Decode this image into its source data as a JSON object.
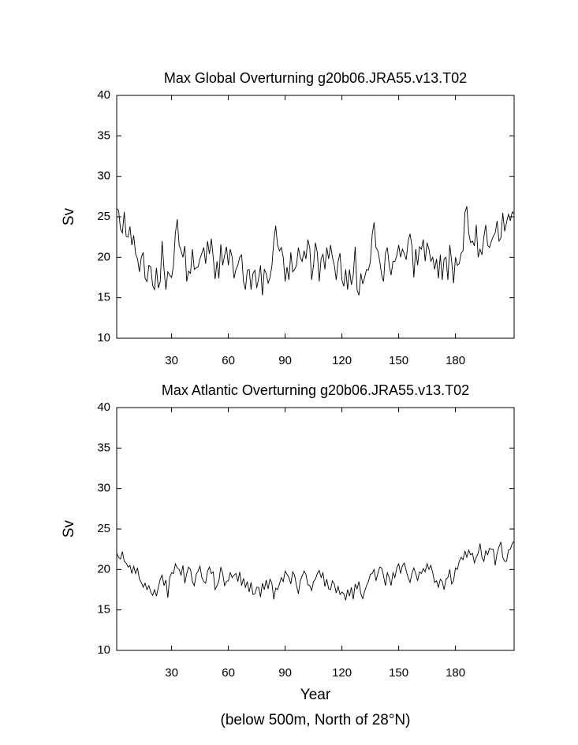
{
  "chart_data": [
    {
      "type": "line",
      "title": "Max Global Overturning g20b06.JRA55.v13.T02",
      "ylabel": "Sv",
      "color": "#000000",
      "xlim": [
        1,
        211
      ],
      "ylim": [
        10,
        40
      ],
      "xticks": [
        30,
        60,
        90,
        120,
        150,
        180
      ],
      "yticks": [
        10,
        15,
        20,
        25,
        30,
        35,
        40
      ],
      "x": [
        1,
        2,
        3,
        4,
        5,
        6,
        7,
        8,
        9,
        10,
        11,
        12,
        13,
        14,
        15,
        16,
        17,
        18,
        19,
        20,
        21,
        22,
        23,
        24,
        25,
        26,
        27,
        28,
        29,
        30,
        31,
        32,
        33,
        34,
        35,
        36,
        37,
        38,
        39,
        40,
        41,
        42,
        43,
        44,
        45,
        46,
        47,
        48,
        49,
        50,
        51,
        52,
        53,
        54,
        55,
        56,
        57,
        58,
        59,
        60,
        61,
        62,
        63,
        64,
        65,
        66,
        67,
        68,
        69,
        70,
        71,
        72,
        73,
        74,
        75,
        76,
        77,
        78,
        79,
        80,
        81,
        82,
        83,
        84,
        85,
        86,
        87,
        88,
        89,
        90,
        91,
        92,
        93,
        94,
        95,
        96,
        97,
        98,
        99,
        100,
        101,
        102,
        103,
        104,
        105,
        106,
        107,
        108,
        109,
        110,
        111,
        112,
        113,
        114,
        115,
        116,
        117,
        118,
        119,
        120,
        121,
        122,
        123,
        124,
        125,
        126,
        127,
        128,
        129,
        130,
        131,
        132,
        133,
        134,
        135,
        136,
        137,
        138,
        139,
        140,
        141,
        142,
        143,
        144,
        145,
        146,
        147,
        148,
        149,
        150,
        151,
        152,
        153,
        154,
        155,
        156,
        157,
        158,
        159,
        160,
        161,
        162,
        163,
        164,
        165,
        166,
        167,
        168,
        169,
        170,
        171,
        172,
        173,
        174,
        175,
        176,
        177,
        178,
        179,
        180,
        181,
        182,
        183,
        184,
        185,
        186,
        187,
        188,
        189,
        190,
        191,
        192,
        193,
        194,
        195,
        196,
        197,
        198,
        199,
        200,
        201,
        202,
        203,
        204,
        205,
        206,
        207,
        208,
        209,
        210,
        211
      ],
      "values": [
        26.0,
        25.8,
        23.5,
        23.0,
        25.6,
        22.6,
        22.5,
        23.8,
        21.5,
        22.7,
        20.4,
        19.8,
        18.2,
        20.0,
        20.6,
        17.4,
        17.0,
        19.0,
        18.8,
        16.5,
        16.0,
        18.7,
        16.2,
        17.0,
        22.0,
        18.5,
        16.0,
        18.2,
        17.8,
        17.5,
        19.0,
        23.0,
        24.7,
        21.5,
        20.8,
        20.0,
        21.4,
        17.0,
        18.3,
        18.0,
        21.0,
        18.5,
        18.7,
        18.8,
        19.8,
        20.5,
        21.2,
        19.2,
        22.0,
        20.4,
        22.3,
        20.0,
        17.3,
        19.5,
        17.4,
        21.6,
        19.0,
        20.2,
        21.3,
        19.0,
        21.0,
        20.0,
        17.4,
        18.5,
        19.0,
        20.0,
        20.3,
        17.0,
        16.0,
        18.4,
        18.5,
        16.0,
        18.0,
        18.4,
        16.2,
        17.4,
        19.0,
        15.3,
        18.5,
        18.0,
        16.8,
        17.5,
        18.9,
        22.0,
        23.9,
        21.5,
        20.8,
        21.2,
        20.0,
        17.0,
        18.8,
        17.2,
        20.6,
        18.2,
        18.5,
        19.0,
        21.2,
        20.0,
        19.5,
        20.8,
        19.8,
        22.2,
        21.2,
        17.2,
        19.0,
        21.8,
        20.6,
        17.0,
        19.8,
        20.4,
        18.5,
        21.2,
        19.8,
        21.5,
        20.0,
        19.0,
        17.2,
        19.5,
        20.5,
        17.2,
        16.4,
        18.5,
        16.0,
        18.5,
        16.6,
        17.8,
        21.3,
        16.0,
        15.3,
        18.0,
        16.7,
        17.5,
        18.5,
        18.4,
        19.4,
        22.8,
        24.3,
        21.2,
        20.8,
        19.5,
        17.8,
        17.0,
        20.5,
        21.2,
        19.0,
        17.8,
        19.5,
        19.5,
        20.2,
        21.5,
        20.0,
        21.0,
        20.4,
        19.7,
        22.0,
        22.9,
        21.4,
        17.5,
        21.0,
        19.0,
        21.3,
        21.0,
        22.2,
        19.5,
        21.8,
        21.0,
        19.5,
        20.0,
        18.5,
        19.8,
        17.4,
        20.3,
        17.2,
        19.8,
        20.0,
        17.2,
        21.5,
        19.5,
        16.8,
        20.0,
        19.0,
        19.2,
        20.5,
        20.8,
        25.5,
        26.3,
        23.0,
        21.8,
        22.0,
        21.4,
        24.0,
        20.0,
        21.0,
        20.3,
        22.5,
        24.0,
        21.5,
        21.2,
        22.0,
        22.6,
        23.0,
        24.5,
        22.0,
        22.4,
        25.5,
        23.2,
        24.3,
        25.3,
        24.5,
        25.6,
        25.4
      ]
    },
    {
      "type": "line",
      "title": "Max Atlantic Overturning g20b06.JRA55.v13.T02",
      "ylabel": "Sv",
      "xlabel": "Year",
      "caption": "(below 500m, North of 28°N)",
      "color": "#000000",
      "xlim": [
        1,
        211
      ],
      "ylim": [
        10,
        40
      ],
      "xticks": [
        30,
        60,
        90,
        120,
        150,
        180
      ],
      "yticks": [
        10,
        15,
        20,
        25,
        30,
        35,
        40
      ],
      "x": [
        1,
        2,
        3,
        4,
        5,
        6,
        7,
        8,
        9,
        10,
        11,
        12,
        13,
        14,
        15,
        16,
        17,
        18,
        19,
        20,
        21,
        22,
        23,
        24,
        25,
        26,
        27,
        28,
        29,
        30,
        31,
        32,
        33,
        34,
        35,
        36,
        37,
        38,
        39,
        40,
        41,
        42,
        43,
        44,
        45,
        46,
        47,
        48,
        49,
        50,
        51,
        52,
        53,
        54,
        55,
        56,
        57,
        58,
        59,
        60,
        61,
        62,
        63,
        64,
        65,
        66,
        67,
        68,
        69,
        70,
        71,
        72,
        73,
        74,
        75,
        76,
        77,
        78,
        79,
        80,
        81,
        82,
        83,
        84,
        85,
        86,
        87,
        88,
        89,
        90,
        91,
        92,
        93,
        94,
        95,
        96,
        97,
        98,
        99,
        100,
        101,
        102,
        103,
        104,
        105,
        106,
        107,
        108,
        109,
        110,
        111,
        112,
        113,
        114,
        115,
        116,
        117,
        118,
        119,
        120,
        121,
        122,
        123,
        124,
        125,
        126,
        127,
        128,
        129,
        130,
        131,
        132,
        133,
        134,
        135,
        136,
        137,
        138,
        139,
        140,
        141,
        142,
        143,
        144,
        145,
        146,
        147,
        148,
        149,
        150,
        151,
        152,
        153,
        154,
        155,
        156,
        157,
        158,
        159,
        160,
        161,
        162,
        163,
        164,
        165,
        166,
        167,
        168,
        169,
        170,
        171,
        172,
        173,
        174,
        175,
        176,
        177,
        178,
        179,
        180,
        181,
        182,
        183,
        184,
        185,
        186,
        187,
        188,
        189,
        190,
        191,
        192,
        193,
        194,
        195,
        196,
        197,
        198,
        199,
        200,
        201,
        202,
        203,
        204,
        205,
        206,
        207,
        208,
        209,
        210,
        211
      ],
      "values": [
        22.0,
        21.5,
        21.3,
        22.2,
        21.0,
        20.8,
        20.3,
        20.5,
        19.5,
        20.4,
        19.5,
        20.2,
        18.8,
        18.4,
        17.8,
        18.3,
        17.5,
        18.0,
        17.2,
        16.8,
        17.5,
        16.7,
        17.8,
        18.8,
        19.3,
        18.0,
        18.7,
        16.5,
        19.0,
        19.6,
        19.5,
        20.7,
        20.2,
        20.0,
        19.3,
        20.5,
        18.3,
        19.5,
        20.3,
        20.0,
        18.5,
        18.0,
        19.4,
        19.8,
        20.4,
        19.0,
        18.5,
        18.3,
        19.8,
        20.3,
        19.5,
        19.7,
        17.5,
        18.0,
        18.6,
        20.3,
        19.5,
        18.0,
        18.5,
        18.6,
        19.6,
        19.0,
        19.3,
        19.5,
        18.5,
        19.7,
        18.0,
        18.9,
        17.8,
        18.5,
        17.2,
        18.4,
        16.9,
        17.0,
        17.8,
        17.8,
        16.6,
        18.3,
        17.5,
        18.7,
        17.6,
        18.8,
        18.3,
        16.3,
        17.7,
        17.5,
        18.2,
        19.0,
        18.5,
        19.8,
        19.4,
        19.0,
        18.2,
        19.7,
        19.3,
        18.0,
        17.0,
        18.6,
        19.2,
        19.8,
        19.4,
        18.1,
        18.0,
        17.4,
        18.5,
        18.8,
        19.5,
        19.9,
        19.0,
        19.6,
        17.9,
        18.8,
        17.6,
        17.5,
        18.6,
        18.2,
        17.1,
        17.9,
        16.9,
        17.2,
        17.0,
        16.2,
        17.5,
        16.7,
        17.8,
        16.3,
        18.2,
        17.6,
        18.5,
        17.0,
        16.4,
        17.3,
        18.0,
        18.5,
        19.4,
        19.5,
        20.0,
        18.6,
        19.5,
        20.3,
        20.2,
        19.2,
        18.0,
        19.6,
        19.0,
        18.0,
        19.6,
        19.0,
        20.2,
        20.7,
        19.5,
        20.5,
        20.8,
        19.8,
        19.0,
        18.4,
        19.5,
        20.2,
        19.5,
        18.6,
        19.7,
        19.5,
        20.1,
        19.7,
        20.7,
        20.0,
        20.5,
        19.6,
        18.4,
        18.6,
        17.8,
        18.8,
        18.5,
        17.5,
        18.8,
        19.0,
        20.0,
        18.2,
        18.6,
        20.2,
        20.0,
        21.0,
        21.5,
        21.2,
        22.3,
        21.5,
        22.4,
        21.8,
        22.0,
        20.8,
        21.5,
        22.0,
        23.2,
        21.5,
        21.0,
        22.3,
        21.8,
        22.6,
        22.5,
        22.5,
        20.5,
        22.0,
        22.8,
        23.4,
        21.5,
        21.0,
        21.0,
        22.4,
        22.5,
        23.2,
        23.5
      ]
    }
  ]
}
